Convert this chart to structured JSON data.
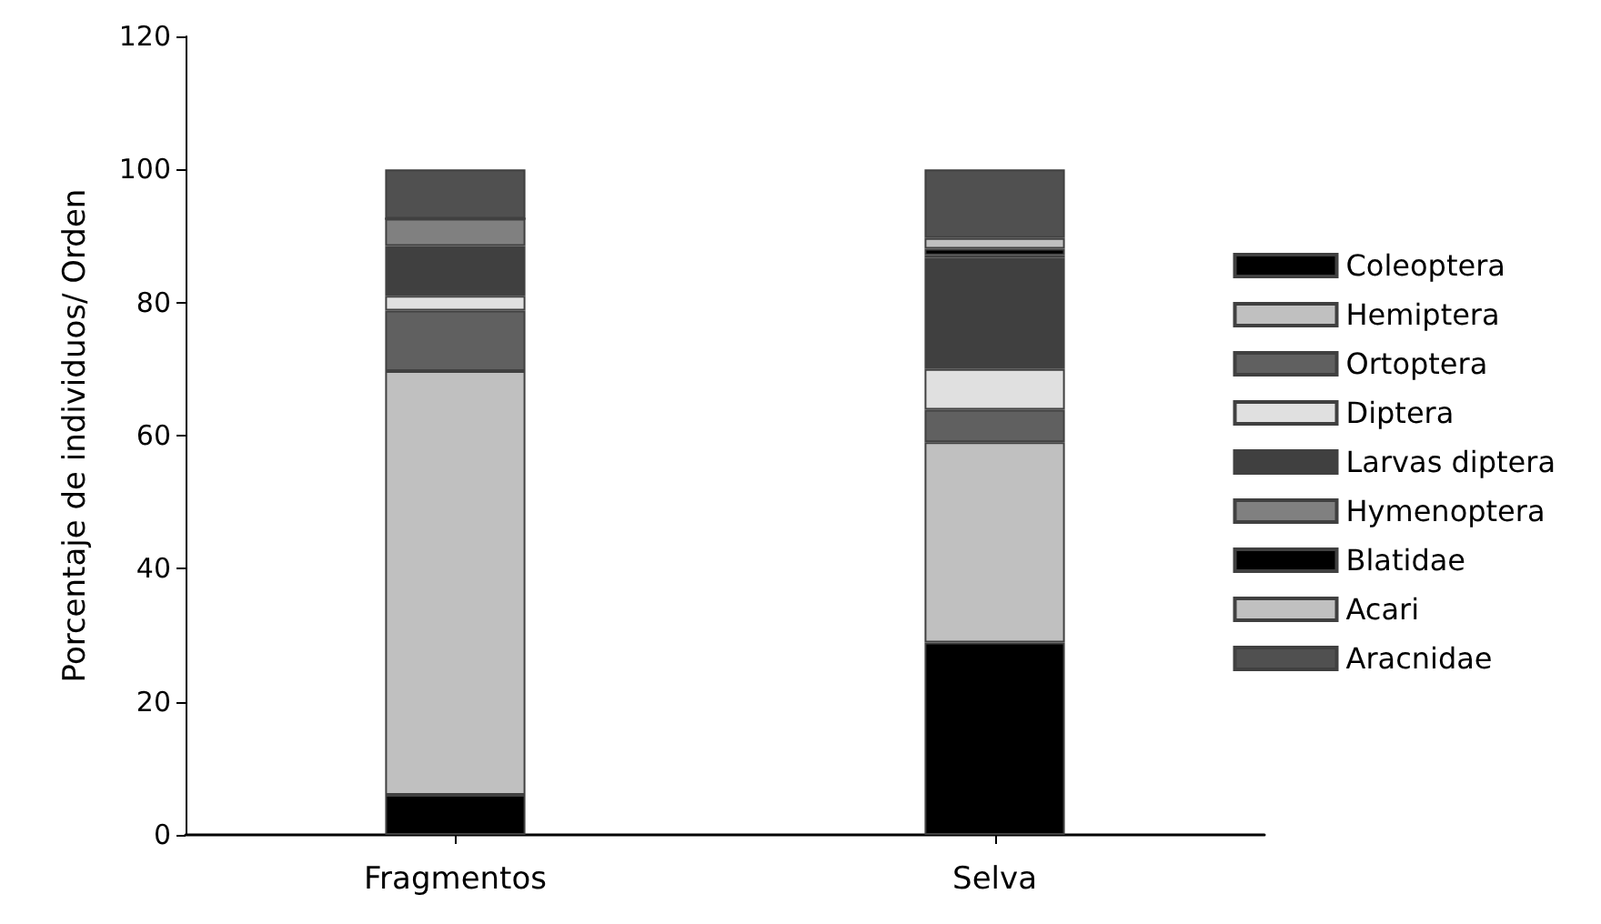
{
  "chart_data": {
    "type": "bar",
    "stacked": true,
    "ylabel": "Porcentaje de individuos/ Orden",
    "categories": [
      "Fragmentos",
      "Selva"
    ],
    "series": [
      {
        "name": "Coleoptera",
        "color": "#000000",
        "values": [
          6.0,
          28.9
        ]
      },
      {
        "name": "Hemiptera",
        "color": "#c0c0c0",
        "values": [
          63.7,
          30.1
        ]
      },
      {
        "name": "Ortoptera",
        "color": "#606060",
        "values": [
          9.1,
          4.9
        ]
      },
      {
        "name": "Diptera",
        "color": "#e0e0e0",
        "values": [
          2.2,
          6.1
        ]
      },
      {
        "name": "Larvas diptera",
        "color": "#404040",
        "values": [
          7.5,
          16.7
        ]
      },
      {
        "name": "Hymenoptera",
        "color": "#808080",
        "values": [
          4.1,
          0.4
        ]
      },
      {
        "name": "Blatidae",
        "color": "#000000",
        "values": [
          0,
          1.0
        ]
      },
      {
        "name": "Acari",
        "color": "#c0c0c0",
        "values": [
          0,
          1.6
        ]
      },
      {
        "name": "Aracnidae",
        "color": "#505050",
        "values": [
          7.4,
          10.3
        ]
      }
    ],
    "ylim": [
      0,
      120
    ],
    "yticks": [
      0,
      20,
      40,
      60,
      80,
      100,
      120
    ],
    "grid": false,
    "legend": "right"
  }
}
